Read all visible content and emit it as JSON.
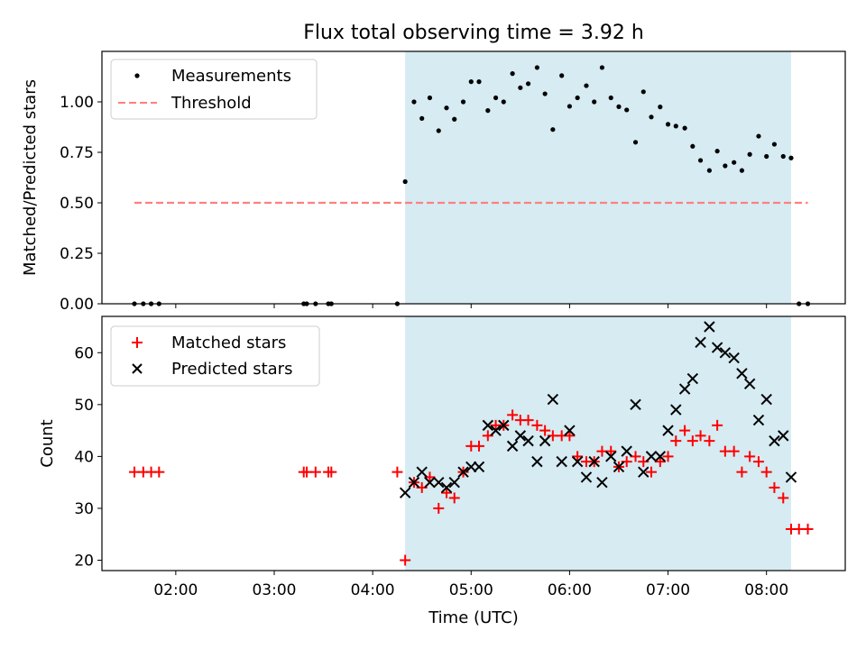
{
  "title": "Flux total observing time = 3.92 h",
  "chart_data": [
    {
      "type": "scatter",
      "title": "Flux total observing time = 3.92 h",
      "ylabel": "Matched/Predicted stars",
      "xlabel": "",
      "x_units": "hours UTC",
      "xlim": [
        1.25,
        8.8
      ],
      "ylim": [
        0.0,
        1.25
      ],
      "yticks": [
        "0.00",
        "0.25",
        "0.50",
        "0.75",
        "1.00"
      ],
      "shaded_interval": [
        4.33,
        8.25
      ],
      "shade_color": "#add8e6",
      "legend": {
        "position": "upper left",
        "entries": [
          "Measurements",
          "Threshold"
        ]
      },
      "series": [
        {
          "name": "Measurements",
          "marker": "dot",
          "color": "#000000",
          "x": [
            1.58,
            1.67,
            1.75,
            1.83,
            3.3,
            3.33,
            3.42,
            3.55,
            3.58,
            4.25,
            4.33,
            4.42,
            4.5,
            4.58,
            4.67,
            4.75,
            4.83,
            4.92,
            5.0,
            5.08,
            5.17,
            5.25,
            5.33,
            5.42,
            5.5,
            5.58,
            5.67,
            5.75,
            5.83,
            5.92,
            6.0,
            6.08,
            6.17,
            6.25,
            6.33,
            6.42,
            6.5,
            6.58,
            6.67,
            6.75,
            6.83,
            6.92,
            7.0,
            7.08,
            7.17,
            7.25,
            7.33,
            7.42,
            7.5,
            7.58,
            7.67,
            7.75,
            7.83,
            7.92,
            8.0,
            8.08,
            8.17,
            8.25,
            8.33,
            8.42
          ],
          "y": [
            0,
            0,
            0,
            0,
            0,
            0,
            0,
            0,
            0,
            0,
            0.605,
            1.0,
            0.918,
            1.02,
            0.857,
            0.97,
            0.914,
            1.0,
            1.1,
            1.1,
            0.957,
            1.02,
            1.0,
            1.14,
            1.07,
            1.09,
            1.17,
            1.04,
            0.863,
            1.13,
            0.978,
            1.02,
            1.08,
            1.0,
            1.17,
            1.02,
            0.976,
            0.96,
            0.8,
            1.05,
            0.925,
            0.975,
            0.889,
            0.88,
            0.87,
            0.78,
            0.71,
            0.66,
            0.756,
            0.683,
            0.7,
            0.66,
            0.74,
            0.83,
            0.73,
            0.79,
            0.73,
            0.722,
            0,
            0
          ]
        },
        {
          "name": "Threshold",
          "style": "dashed",
          "color": "#ff7f7f",
          "x": [
            1.58,
            8.42
          ],
          "y": [
            0.5,
            0.5
          ]
        }
      ]
    },
    {
      "type": "scatter",
      "title": "",
      "ylabel": "Count",
      "xlabel": "Time (UTC)",
      "x_units": "hours UTC",
      "xlim": [
        1.25,
        8.8
      ],
      "ylim": [
        18,
        67
      ],
      "yticks": [
        "20",
        "30",
        "40",
        "50",
        "60"
      ],
      "xticks": [
        {
          "value": 2,
          "label": "02:00"
        },
        {
          "value": 3,
          "label": "03:00"
        },
        {
          "value": 4,
          "label": "04:00"
        },
        {
          "value": 5,
          "label": "05:00"
        },
        {
          "value": 6,
          "label": "06:00"
        },
        {
          "value": 7,
          "label": "07:00"
        },
        {
          "value": 8,
          "label": "08:00"
        }
      ],
      "shaded_interval": [
        4.33,
        8.25
      ],
      "shade_color": "#add8e6",
      "legend": {
        "position": "upper left",
        "entries": [
          "Matched stars",
          "Predicted stars"
        ]
      },
      "series": [
        {
          "name": "Matched stars",
          "marker": "plus",
          "color": "#ff0000",
          "x": [
            1.58,
            1.67,
            1.75,
            1.83,
            3.3,
            3.33,
            3.42,
            3.55,
            3.58,
            4.25,
            4.33,
            4.42,
            4.5,
            4.58,
            4.67,
            4.75,
            4.83,
            4.92,
            5.0,
            5.08,
            5.17,
            5.25,
            5.33,
            5.42,
            5.5,
            5.58,
            5.67,
            5.75,
            5.83,
            5.92,
            6.0,
            6.08,
            6.17,
            6.25,
            6.33,
            6.42,
            6.5,
            6.58,
            6.67,
            6.75,
            6.83,
            6.92,
            7.0,
            7.08,
            7.17,
            7.25,
            7.33,
            7.42,
            7.5,
            7.58,
            7.67,
            7.75,
            7.83,
            7.92,
            8.0,
            8.08,
            8.17,
            8.25,
            8.33,
            8.42
          ],
          "y": [
            37,
            37,
            37,
            37,
            37,
            37,
            37,
            37,
            37,
            37,
            20,
            35,
            34,
            36,
            30,
            33,
            32,
            37,
            42,
            42,
            44,
            46,
            46,
            48,
            47,
            47,
            46,
            45,
            44,
            44,
            44,
            40,
            39,
            39,
            41,
            41,
            38,
            39,
            40,
            39,
            37,
            39,
            40,
            43,
            45,
            43,
            44,
            43,
            46,
            41,
            41,
            37,
            40,
            39,
            37,
            34,
            32,
            26,
            26,
            26
          ]
        },
        {
          "name": "Predicted stars",
          "marker": "x",
          "color": "#000000",
          "x": [
            4.33,
            4.42,
            4.5,
            4.58,
            4.67,
            4.75,
            4.83,
            4.92,
            5.0,
            5.08,
            5.17,
            5.25,
            5.33,
            5.42,
            5.5,
            5.58,
            5.67,
            5.75,
            5.83,
            5.92,
            6.0,
            6.08,
            6.17,
            6.25,
            6.33,
            6.42,
            6.5,
            6.58,
            6.67,
            6.75,
            6.83,
            6.92,
            7.0,
            7.08,
            7.17,
            7.25,
            7.33,
            7.42,
            7.5,
            7.58,
            7.67,
            7.75,
            7.83,
            7.92,
            8.0,
            8.08,
            8.17,
            8.25
          ],
          "y": [
            33,
            35,
            37,
            35,
            35,
            34,
            35,
            37,
            38,
            38,
            46,
            45,
            46,
            42,
            44,
            43,
            39,
            43,
            51,
            39,
            45,
            39,
            36,
            39,
            35,
            40,
            38,
            41,
            50,
            37,
            40,
            40,
            45,
            49,
            53,
            55,
            62,
            65,
            61,
            60,
            59,
            56,
            54,
            47,
            51,
            43,
            44,
            36
          ]
        }
      ]
    }
  ]
}
